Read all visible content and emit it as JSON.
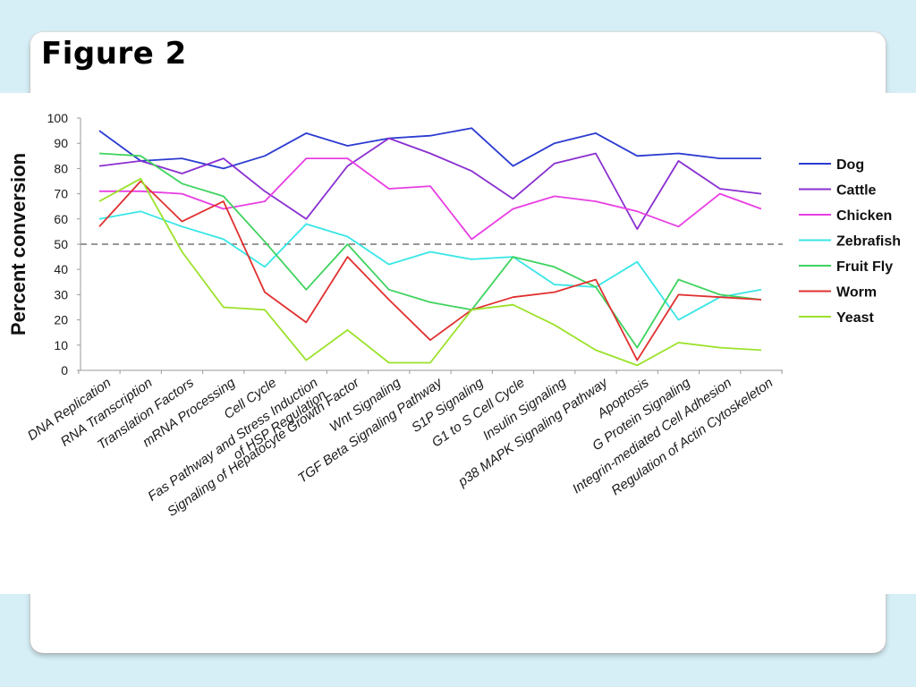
{
  "slide": {
    "title": "Figure 2"
  },
  "chart_data": {
    "type": "line",
    "ylabel": "Percent conversion",
    "xlabel": "",
    "ylim": [
      0,
      100
    ],
    "yticks": [
      0,
      10,
      20,
      30,
      40,
      50,
      60,
      70,
      80,
      90,
      100
    ],
    "reference_line": {
      "y": 50,
      "style": "dashed",
      "color": "#777777"
    },
    "legend_position": "right",
    "categories": [
      "DNA Replication",
      "RNA Transcription",
      "Translation Factors",
      "mRNA Processing",
      "Cell Cycle",
      "Fas Pathway and Stress Induction\nof HSP Regulation",
      "Signaling of Hepatocyte Growth Factor",
      "Wnt Signaling",
      "TGF Beta Signaling Pathway",
      "S1P Signaling",
      "G1 to S Cell Cycle",
      "Insulin Signaling",
      "p38 MAPK Signaling Pathway",
      "Apoptosis",
      "G Protein Signaling",
      "Integrin-mediated Cell Adhesion",
      "Regulation of Actin Cytoskeleton"
    ],
    "series": [
      {
        "name": "Dog",
        "color": "#2b3bd1",
        "values": [
          95,
          83,
          84,
          80,
          85,
          94,
          89,
          92,
          93,
          96,
          81,
          90,
          94,
          85,
          86,
          84,
          84
        ]
      },
      {
        "name": "Cattle",
        "color": "#8a2fd0",
        "values": [
          81,
          83,
          78,
          84,
          71,
          60,
          81,
          92,
          86,
          79,
          68,
          82,
          86,
          56,
          83,
          72,
          70
        ]
      },
      {
        "name": "Chicken",
        "color": "#e83ee3",
        "values": [
          71,
          71,
          70,
          64,
          67,
          84,
          84,
          72,
          73,
          52,
          64,
          69,
          67,
          63,
          57,
          70,
          64
        ]
      },
      {
        "name": "Zebrafish",
        "color": "#38e6e6",
        "values": [
          60,
          63,
          57,
          52,
          41,
          58,
          53,
          42,
          47,
          44,
          45,
          34,
          33,
          43,
          20,
          29,
          32
        ]
      },
      {
        "name": "Fruit Fly",
        "color": "#3ed35e",
        "values": [
          86,
          85,
          74,
          69,
          51,
          32,
          50,
          32,
          27,
          24,
          45,
          41,
          33,
          9,
          36,
          30,
          28
        ]
      },
      {
        "name": "Worm",
        "color": "#e03030",
        "values": [
          57,
          75,
          59,
          67,
          31,
          19,
          45,
          28,
          12,
          24,
          29,
          31,
          36,
          4,
          30,
          29,
          28
        ]
      },
      {
        "name": "Yeast",
        "color": "#9be22a",
        "values": [
          67,
          76,
          47,
          25,
          24,
          4,
          16,
          3,
          3,
          24,
          26,
          18,
          8,
          2,
          11,
          9,
          8
        ]
      }
    ]
  }
}
